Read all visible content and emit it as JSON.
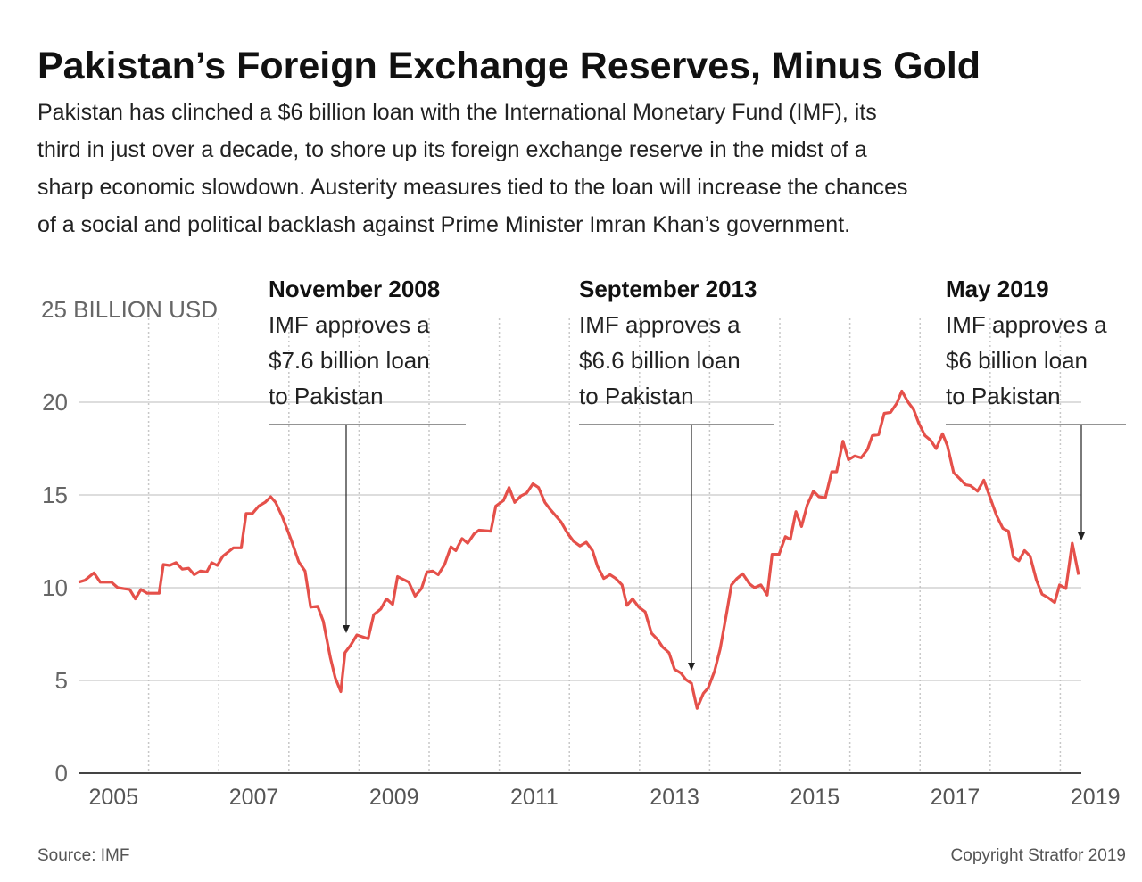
{
  "chart_data": {
    "type": "line",
    "title": "Pakistan’s Foreign Exchange Reserves, Minus Gold",
    "subtitle": [
      "Pakistan has clinched a $6 billion loan with the  International Monetary Fund (IMF), its",
      "third in just over a decade, to shore up its foreign exchange reserve in the midst of a",
      "sharp economic slowdown. Austerity measures tied to the loan will increase the chances",
      "of a social and political backlash against Prime Minister Imran Khan’s government."
    ],
    "source": "Source: IMF",
    "copyright": "Copyright Stratfor 2019",
    "color": "#e5504a",
    "grid": true,
    "xlim": [
      2005,
      2019.3
    ],
    "xticks": [
      {
        "value": 2005.5,
        "label": "2005"
      },
      {
        "value": 2007.5,
        "label": "2007"
      },
      {
        "value": 2009.5,
        "label": "2009"
      },
      {
        "value": 2011.5,
        "label": "2011"
      },
      {
        "value": 2013.5,
        "label": "2013"
      },
      {
        "value": 2015.5,
        "label": "2015"
      },
      {
        "value": 2017.5,
        "label": "2017"
      },
      {
        "value": 2019.5,
        "label": "2019"
      }
    ],
    "xgrid": [
      2006,
      2007,
      2008,
      2009,
      2010,
      2011,
      2012,
      2013,
      2014,
      2015,
      2016,
      2017,
      2018,
      2019
    ],
    "ylim": [
      0,
      25
    ],
    "yticks": [
      0,
      5,
      10,
      15,
      20,
      {
        "value": 25,
        "label": "25 BILLION USD"
      }
    ],
    "annotations": [
      {
        "title": "November 2008",
        "lines": [
          "IMF approves a",
          "$7.6 billion loan",
          "to Pakistan"
        ]
      },
      {
        "title": "September 2013",
        "lines": [
          "IMF approves a",
          "$6.6 billion loan",
          "to Pakistan"
        ]
      },
      {
        "title": "May 2019",
        "lines": [
          "IMF approves a",
          "$6 billion loan",
          "to Pakistan"
        ]
      }
    ],
    "x": [
      2005.0,
      2005.09,
      2005.22,
      2005.31,
      2005.47,
      2005.56,
      2005.73,
      2005.81,
      2005.89,
      2005.98,
      2006.15,
      2006.21,
      2006.3,
      2006.39,
      2006.48,
      2006.57,
      2006.65,
      2006.74,
      2006.83,
      2006.9,
      2006.98,
      2007.06,
      2007.21,
      2007.32,
      2007.39,
      2007.48,
      2007.57,
      2007.66,
      2007.74,
      2007.81,
      2007.91,
      2008.03,
      2008.14,
      2008.23,
      2008.31,
      2008.41,
      2008.49,
      2008.59,
      2008.66,
      2008.74,
      2008.8,
      2008.88,
      2008.97,
      2009.13,
      2009.21,
      2009.31,
      2009.39,
      2009.48,
      2009.55,
      2009.71,
      2009.8,
      2009.89,
      2009.97,
      2010.05,
      2010.13,
      2010.22,
      2010.31,
      2010.38,
      2010.47,
      2010.55,
      2010.64,
      2010.71,
      2010.88,
      2010.95,
      2011.06,
      2011.14,
      2011.22,
      2011.31,
      2011.39,
      2011.48,
      2011.56,
      2011.65,
      2011.73,
      2011.88,
      2011.97,
      2012.06,
      2012.15,
      2012.24,
      2012.33,
      2012.4,
      2012.49,
      2012.58,
      2012.66,
      2012.75,
      2012.82,
      2012.9,
      2012.99,
      2013.08,
      2013.17,
      2013.26,
      2013.33,
      2013.42,
      2013.5,
      2013.59,
      2013.66,
      2013.74,
      2013.82,
      2013.91,
      2013.98,
      2014.07,
      2014.15,
      2014.24,
      2014.31,
      2014.39,
      2014.47,
      2014.57,
      2014.64,
      2014.73,
      2014.82,
      2014.89,
      2014.99,
      2015.08,
      2015.15,
      2015.23,
      2015.31,
      2015.39,
      2015.48,
      2015.56,
      2015.65,
      2015.74,
      2015.81,
      2015.9,
      2015.98,
      2016.07,
      2016.16,
      2016.25,
      2016.32,
      2016.41,
      2016.49,
      2016.58,
      2016.67,
      2016.74,
      2016.83,
      2016.91,
      2016.98,
      2017.07,
      2017.15,
      2017.23,
      2017.32,
      2017.39,
      2017.48,
      2017.56,
      2017.65,
      2017.72,
      2017.82,
      2017.91,
      2018.0,
      2018.09,
      2018.18,
      2018.26,
      2018.33,
      2018.41,
      2018.49,
      2018.57,
      2018.66,
      2018.74,
      2018.83,
      2018.92,
      2018.99,
      2019.08,
      2019.17,
      2019.26
    ],
    "values": [
      10.3,
      10.4,
      10.8,
      10.3,
      10.3,
      10.0,
      9.9,
      9.4,
      9.9,
      9.7,
      9.7,
      11.25,
      11.2,
      11.35,
      11.0,
      11.05,
      10.7,
      10.9,
      10.85,
      11.35,
      11.2,
      11.7,
      12.15,
      12.15,
      14.0,
      14.0,
      14.4,
      14.6,
      14.9,
      14.6,
      13.8,
      12.6,
      11.4,
      10.9,
      8.95,
      9.0,
      8.2,
      6.25,
      5.15,
      4.4,
      6.5,
      6.9,
      7.45,
      7.25,
      8.55,
      8.85,
      9.4,
      9.1,
      10.6,
      10.3,
      9.55,
      9.95,
      10.85,
      10.9,
      10.7,
      11.25,
      12.2,
      12.0,
      12.65,
      12.4,
      12.9,
      13.1,
      13.05,
      14.4,
      14.7,
      15.4,
      14.6,
      14.95,
      15.1,
      15.6,
      15.4,
      14.6,
      14.2,
      13.55,
      12.95,
      12.5,
      12.25,
      12.45,
      12.0,
      11.15,
      10.5,
      10.7,
      10.5,
      10.15,
      9.05,
      9.4,
      8.95,
      8.7,
      7.55,
      7.2,
      6.8,
      6.5,
      5.6,
      5.4,
      5.05,
      4.85,
      3.5,
      4.3,
      4.6,
      5.5,
      6.7,
      8.6,
      10.15,
      10.5,
      10.75,
      10.2,
      10.0,
      10.15,
      9.6,
      11.8,
      11.8,
      12.75,
      12.6,
      14.1,
      13.3,
      14.45,
      15.2,
      14.9,
      14.85,
      16.25,
      16.25,
      17.9,
      16.9,
      17.1,
      17.0,
      17.45,
      18.2,
      18.25,
      19.4,
      19.45,
      19.95,
      20.6,
      20.0,
      19.6,
      18.9,
      18.2,
      17.95,
      17.5,
      18.3,
      17.65,
      16.2,
      15.9,
      15.55,
      15.5,
      15.2,
      15.8,
      14.85,
      13.9,
      13.2,
      13.05,
      11.65,
      11.45,
      12.0,
      11.7,
      10.4,
      9.65,
      9.45,
      9.2,
      10.15,
      9.95,
      12.4,
      10.7
    ]
  }
}
